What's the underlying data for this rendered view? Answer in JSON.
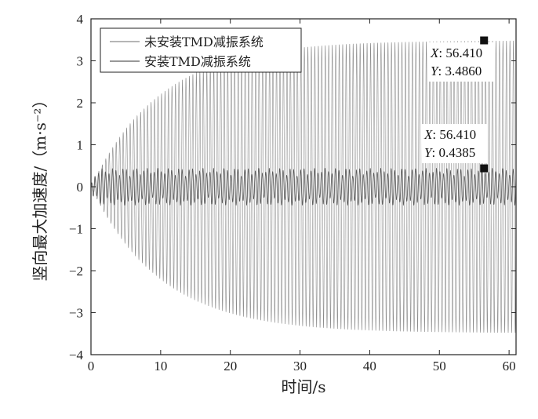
{
  "chart_data": {
    "type": "line",
    "xlabel": "时间/s",
    "ylabel": "竖向最大加速度/（m·s⁻²）",
    "xlim": [
      0,
      61
    ],
    "ylim": [
      -4,
      4
    ],
    "xticks": [
      0,
      10,
      20,
      30,
      40,
      50,
      60
    ],
    "yticks": [
      -4,
      -3,
      -2,
      -1,
      0,
      1,
      2,
      3,
      4
    ],
    "grid": false,
    "legend_position": "top-left",
    "series": [
      {
        "name": "未安装TMD减振系统",
        "color": "#8a8a8a",
        "model": "growing oscillation",
        "steady_amplitude": 3.486,
        "frequency_hz": 2.0,
        "time_constant_s": 10
      },
      {
        "name": "安装TMD减振系统",
        "color": "#5a5a5a",
        "model": "beating oscillation",
        "steady_amplitude": 0.4385,
        "frequency_hz": 2.0,
        "beat_period_s": 1.6
      }
    ],
    "annotations": [
      {
        "x_label": "X",
        "x_value": "56.410",
        "y_label": "Y",
        "y_value": "3.4860",
        "x": 56.41,
        "y": 3.486
      },
      {
        "x_label": "X",
        "x_value": "56.410",
        "y_label": "Y",
        "y_value": "0.4385",
        "x": 56.41,
        "y": 0.4385
      }
    ]
  }
}
